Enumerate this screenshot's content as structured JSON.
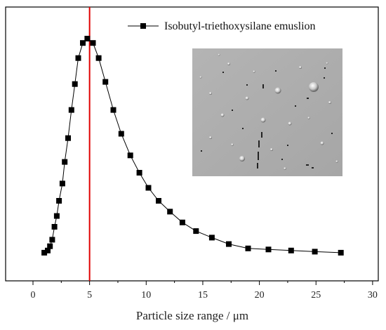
{
  "chart_data": {
    "type": "line",
    "xlabel": "Particle size range / μm",
    "ylabel": "",
    "xlim": [
      0,
      30
    ],
    "ylim": [
      0,
      1.15
    ],
    "x_ticks": [
      "0",
      "5",
      "10",
      "15",
      "20",
      "25",
      "30"
    ],
    "grid": false,
    "legend_position": "top-right",
    "series": [
      {
        "name": "Isobutyl-triethoxysilane emuslion",
        "color": "#000000",
        "marker": "square",
        "points": [
          [
            1.0,
            0.01
          ],
          [
            1.3,
            0.02
          ],
          [
            1.5,
            0.04
          ],
          [
            1.7,
            0.07
          ],
          [
            1.9,
            0.13
          ],
          [
            2.1,
            0.18
          ],
          [
            2.3,
            0.25
          ],
          [
            2.6,
            0.33
          ],
          [
            2.8,
            0.43
          ],
          [
            3.1,
            0.54
          ],
          [
            3.4,
            0.67
          ],
          [
            3.7,
            0.79
          ],
          [
            4.0,
            0.91
          ],
          [
            4.4,
            0.98
          ],
          [
            4.8,
            1.0
          ],
          [
            5.3,
            0.98
          ],
          [
            5.8,
            0.91
          ],
          [
            6.4,
            0.8
          ],
          [
            7.1,
            0.67
          ],
          [
            7.8,
            0.56
          ],
          [
            8.6,
            0.46
          ],
          [
            9.4,
            0.38
          ],
          [
            10.2,
            0.31
          ],
          [
            11.1,
            0.25
          ],
          [
            12.1,
            0.2
          ],
          [
            13.2,
            0.15
          ],
          [
            14.4,
            0.11
          ],
          [
            15.8,
            0.08
          ],
          [
            17.3,
            0.05
          ],
          [
            19.0,
            0.03
          ],
          [
            20.8,
            0.025
          ],
          [
            22.8,
            0.02
          ],
          [
            24.9,
            0.015
          ],
          [
            27.2,
            0.01
          ]
        ]
      }
    ],
    "reference_line": {
      "x": 5,
      "color": "#e00000"
    },
    "inset": {
      "type": "micrograph",
      "location": "upper-right"
    }
  }
}
